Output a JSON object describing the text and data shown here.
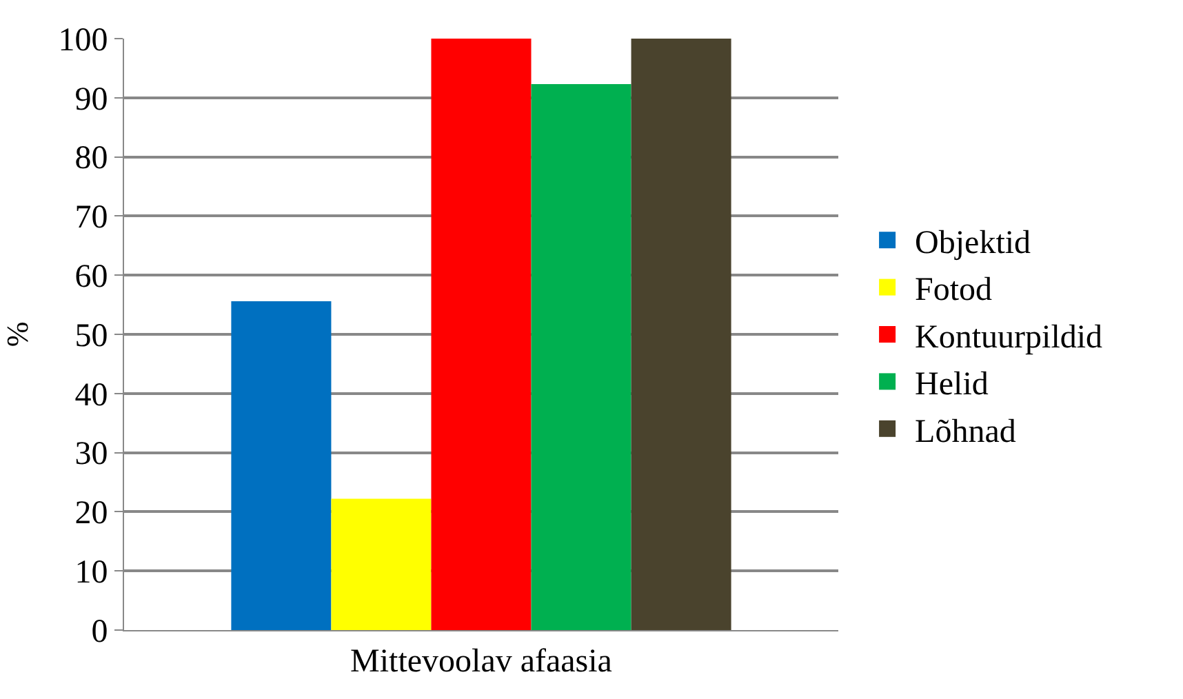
{
  "chart_data": {
    "type": "bar",
    "ylabel": "%",
    "categories": [
      "Mittevoolav afaasia"
    ],
    "series": [
      {
        "name": "Objektid",
        "color": "#0070c0",
        "values": [
          55.6
        ]
      },
      {
        "name": "Fotod",
        "color": "#ffff00",
        "values": [
          22.2
        ]
      },
      {
        "name": "Kontuurpildid",
        "color": "#ff0000",
        "values": [
          100
        ]
      },
      {
        "name": "Helid",
        "color": "#00b050",
        "values": [
          92.3
        ]
      },
      {
        "name": "Lõhnad",
        "color": "#4a432d",
        "values": [
          100
        ]
      }
    ],
    "ylim": [
      0,
      100
    ],
    "yticks": [
      0,
      10,
      20,
      30,
      40,
      50,
      60,
      70,
      80,
      90,
      100
    ],
    "grid": "y",
    "legend": "right"
  }
}
